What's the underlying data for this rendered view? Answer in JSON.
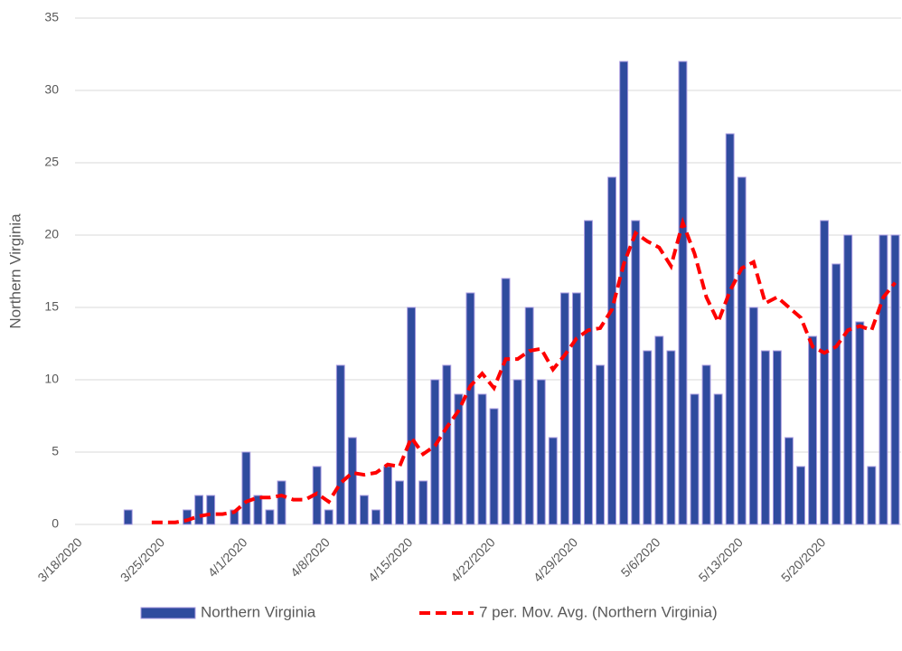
{
  "chart_data": {
    "type": "bar_line",
    "y_label": "Northern Virginia",
    "categories": [
      "3/18/2020",
      null,
      null,
      null,
      null,
      null,
      null,
      "3/25/2020",
      null,
      null,
      null,
      null,
      null,
      null,
      "4/1/2020",
      null,
      null,
      null,
      null,
      null,
      null,
      "4/8/2020",
      null,
      null,
      null,
      null,
      null,
      null,
      "4/15/2020",
      null,
      null,
      null,
      null,
      null,
      null,
      "4/22/2020",
      null,
      null,
      null,
      null,
      null,
      null,
      "4/29/2020",
      null,
      null,
      null,
      null,
      null,
      null,
      "5/6/2020",
      null,
      null,
      null,
      null,
      null,
      null,
      "5/13/2020",
      null,
      null,
      null,
      null,
      null,
      null,
      "5/20/2020",
      null,
      null,
      null,
      null,
      null,
      null
    ],
    "series": [
      {
        "name": "Northern Virginia",
        "kind": "bar",
        "color": "#2f4b9e",
        "edge": "#a99be0",
        "values": [
          0,
          0,
          0,
          0,
          1,
          0,
          0,
          0,
          0,
          1,
          2,
          2,
          0,
          1,
          5,
          2,
          1,
          3,
          0,
          0,
          4,
          1,
          11,
          6,
          2,
          1,
          4,
          3,
          15,
          3,
          10,
          11,
          9,
          16,
          9,
          8,
          17,
          10,
          15,
          10,
          6,
          16,
          16,
          21,
          11,
          24,
          32,
          21,
          12,
          13,
          12,
          32,
          9,
          11,
          9,
          27,
          24,
          15,
          12,
          12,
          6,
          4,
          13,
          21,
          18,
          20,
          14,
          4,
          20,
          20
        ]
      },
      {
        "name": "7 per. Mov. Avg. (Northern Virginia)",
        "kind": "line",
        "color": "#ff0000",
        "values": [
          null,
          null,
          null,
          null,
          null,
          null,
          0.14,
          0.14,
          0.14,
          0.29,
          0.57,
          0.71,
          0.71,
          0.86,
          1.57,
          1.86,
          1.86,
          2,
          1.71,
          1.71,
          2.14,
          1.57,
          2.86,
          3.57,
          3.43,
          3.57,
          4.14,
          4,
          6,
          4.86,
          5.43,
          6.71,
          7.86,
          9.57,
          10.43,
          9.43,
          11.43,
          11.43,
          12,
          12.14,
          10.71,
          11.71,
          12.86,
          13.43,
          13.57,
          14.86,
          18,
          20.14,
          19.57,
          19.14,
          17.86,
          20.86,
          18.71,
          15.71,
          14,
          16.14,
          17.71,
          18.14,
          15.29,
          15.71,
          15,
          14.29,
          12.29,
          11.86,
          12.29,
          13.43,
          13.71,
          13.43,
          15.71,
          16.71
        ]
      }
    ],
    "ylim": [
      0,
      35
    ],
    "yticks": [
      0,
      5,
      10,
      15,
      20,
      25,
      30,
      35
    ],
    "grid": true,
    "legend": "bottom"
  }
}
